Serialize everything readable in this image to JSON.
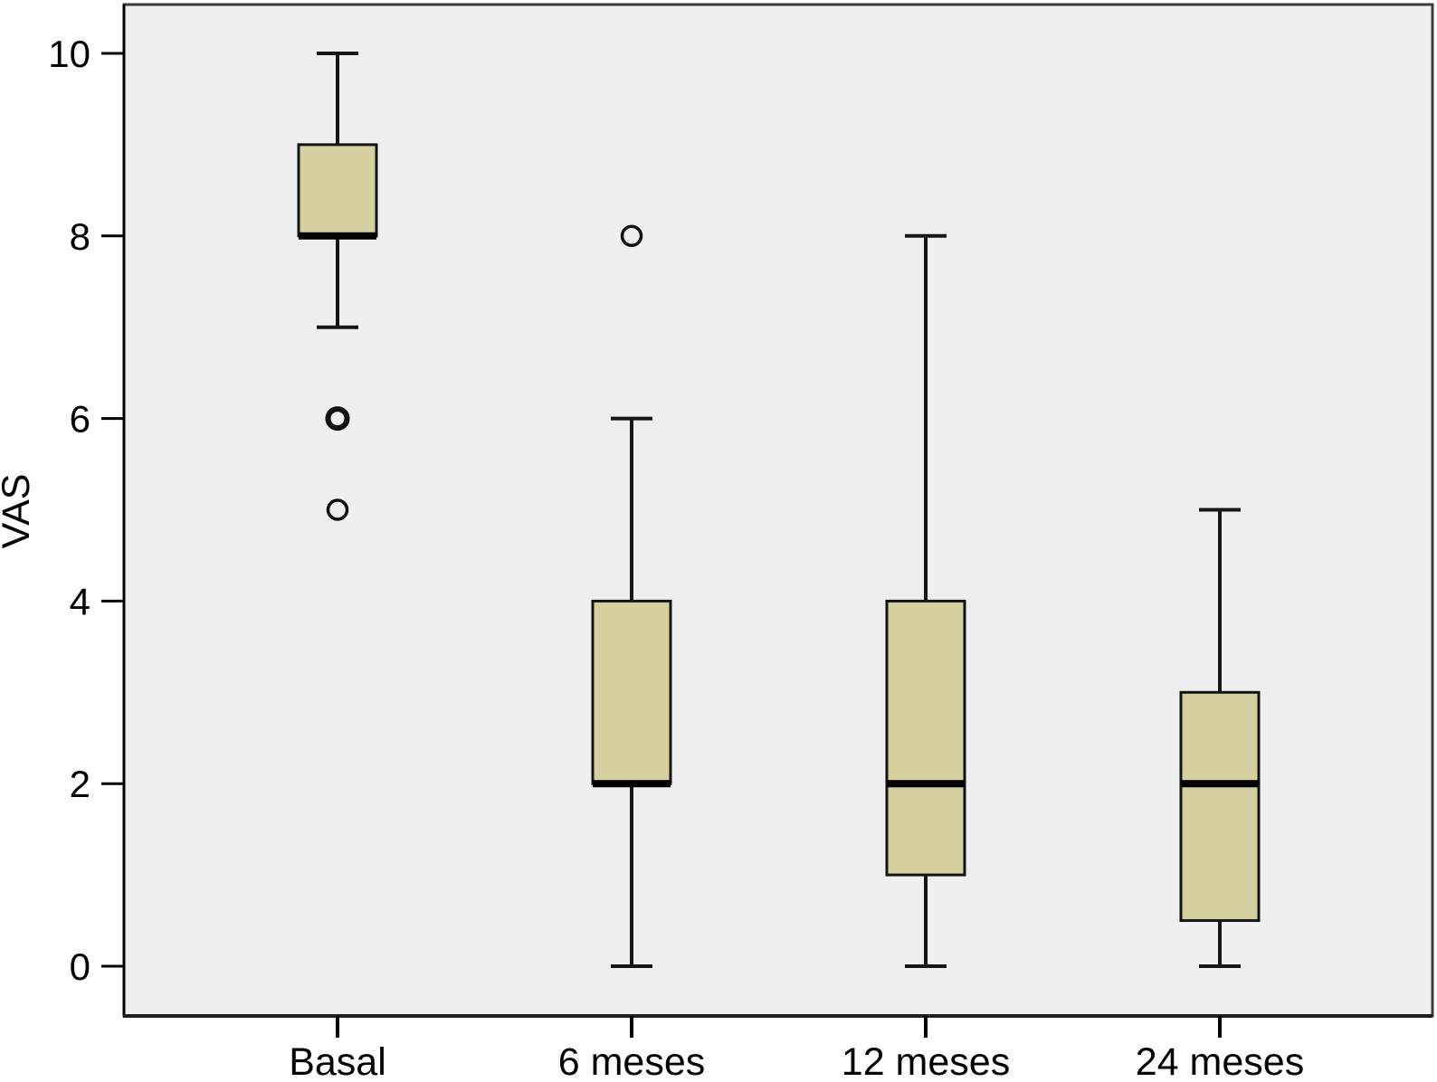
{
  "chart_data": {
    "type": "boxplot",
    "title": "",
    "xlabel": "",
    "ylabel": "VAS",
    "categories": [
      "Basal",
      "6 meses",
      "12 meses",
      "24 meses"
    ],
    "yticks": [
      0,
      2,
      4,
      6,
      8,
      10
    ],
    "ytick_labels": [
      "0",
      "2",
      "4",
      "6",
      "8",
      "10"
    ],
    "ylim": [
      -0.55,
      10.55
    ],
    "grid": false,
    "legend": "none",
    "series": [
      {
        "category": "Basal",
        "whisker_low": 7,
        "q1": 8,
        "median": 8,
        "q3": 9,
        "whisker_high": 10,
        "outliers": [
          {
            "value": 6,
            "emphasis": true
          },
          {
            "value": 5,
            "emphasis": false
          }
        ]
      },
      {
        "category": "6 meses",
        "whisker_low": 0,
        "q1": 2,
        "median": 2,
        "q3": 4,
        "whisker_high": 6,
        "outliers": [
          {
            "value": 8,
            "emphasis": false
          }
        ]
      },
      {
        "category": "12 meses",
        "whisker_low": 0,
        "q1": 1,
        "median": 2,
        "q3": 4,
        "whisker_high": 8,
        "outliers": []
      },
      {
        "category": "24 meses",
        "whisker_low": 0,
        "q1": 0.5,
        "median": 2,
        "q3": 3,
        "whisker_high": 5,
        "outliers": []
      }
    ],
    "colors": {
      "box_fill": "#d6d0a0",
      "box_border": "#141414",
      "median": "#000000",
      "whisker": "#161616",
      "outlier": "#111111",
      "plot_background": "#efefef",
      "frame_border": "#3d3d3d",
      "axis_line": "#000000",
      "tick": "#000000",
      "outside_background": "#ffffff"
    }
  }
}
